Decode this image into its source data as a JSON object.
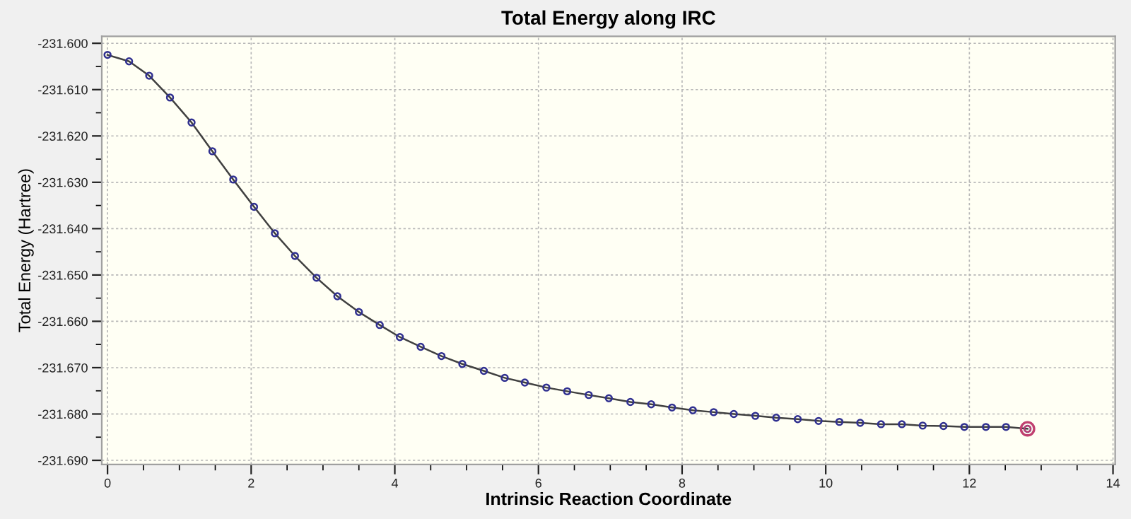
{
  "chart_data": {
    "type": "line",
    "title": "Total Energy along IRC",
    "xlabel": "Intrinsic Reaction Coordinate",
    "ylabel": "Total Energy (Hartree)",
    "marker": "circle",
    "line_style": "solid",
    "grid": true,
    "series": [
      {
        "color": "#303090",
        "x": [
          0,
          0.3,
          0.58,
          0.87,
          1.17,
          1.46,
          1.75,
          2.04,
          2.33,
          2.61,
          2.91,
          3.2,
          3.5,
          3.79,
          4.07,
          4.36,
          4.65,
          4.94,
          5.24,
          5.53,
          5.81,
          6.11,
          6.4,
          6.7,
          6.98,
          7.28,
          7.57,
          7.86,
          8.15,
          8.44,
          8.72,
          9.02,
          9.31,
          9.61,
          9.9,
          10.19,
          10.48,
          10.77,
          11.06,
          11.35,
          11.64,
          11.93,
          12.23,
          12.51,
          12.81
        ],
        "values": [
          -231.6025,
          -231.6039,
          -231.607,
          -231.6117,
          -231.6171,
          -231.6233,
          -231.6294,
          -231.6353,
          -231.641,
          -231.6459,
          -231.6506,
          -231.6546,
          -231.658,
          -231.6608,
          -231.6634,
          -231.6655,
          -231.6675,
          -231.6692,
          -231.6707,
          -231.6722,
          -231.6732,
          -231.6743,
          -231.6751,
          -231.6759,
          -231.6766,
          -231.6774,
          -231.6779,
          -231.6786,
          -231.6792,
          -231.6796,
          -231.68,
          -231.6804,
          -231.6808,
          -231.6811,
          -231.6815,
          -231.6817,
          -231.6819,
          -231.6822,
          -231.6822,
          -231.6825,
          -231.6826,
          -231.6828,
          -231.6828,
          -231.6828,
          -231.6832
        ]
      },
      {
        "type": "scatter",
        "color": "#c04070",
        "x": [
          12.81
        ],
        "values": [
          -231.6832
        ]
      }
    ],
    "xlim": [
      -0.08,
      14.03
    ],
    "ylim": [
      -231.6909,
      -231.5985
    ],
    "xticks": [
      0,
      2,
      4,
      6,
      8,
      10,
      12,
      14
    ],
    "yticks": [
      {
        "value": -231.6,
        "label": "-231.600"
      },
      {
        "value": -231.61,
        "label": "-231.610"
      },
      {
        "value": -231.62,
        "label": "-231.620"
      },
      {
        "value": -231.63,
        "label": "-231.630"
      },
      {
        "value": -231.64,
        "label": "-231.640"
      },
      {
        "value": -231.65,
        "label": "-231.650"
      },
      {
        "value": -231.66,
        "label": "-231.660"
      },
      {
        "value": -231.67,
        "label": "-231.670"
      },
      {
        "value": -231.68,
        "label": "-231.680"
      },
      {
        "value": -231.69,
        "label": "-231.690"
      }
    ]
  }
}
